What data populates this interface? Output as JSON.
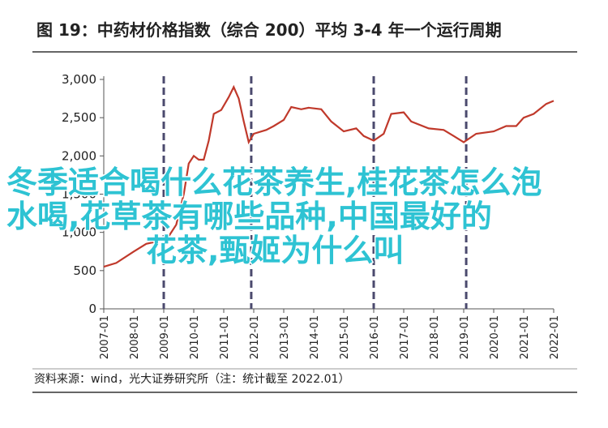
{
  "chart_data": {
    "type": "line",
    "title": "图 19：中药材价格指数（综合 200）平均 3-4 年一个运行周期",
    "source": "资料来源：wind，光大证券研究所（注：统计截至 2022.01）",
    "x": [
      "2007-01",
      "2007-06",
      "2008-01",
      "2008-06",
      "2009-01",
      "2009-03",
      "2009-06",
      "2009-09",
      "2009-11",
      "2010-01",
      "2010-03",
      "2010-05",
      "2010-07",
      "2010-09",
      "2010-12",
      "2011-03",
      "2011-05",
      "2011-07",
      "2011-09",
      "2011-11",
      "2012-01",
      "2012-06",
      "2012-09",
      "2013-01",
      "2013-04",
      "2013-08",
      "2013-11",
      "2014-04",
      "2014-08",
      "2015-01",
      "2015-06",
      "2015-09",
      "2016-01",
      "2016-05",
      "2016-08",
      "2017-01",
      "2017-04",
      "2017-11",
      "2018-05",
      "2018-09",
      "2019-01",
      "2019-06",
      "2020-01",
      "2020-06",
      "2020-10",
      "2021-01",
      "2021-05",
      "2021-10",
      "2022-01"
    ],
    "values": [
      550,
      600,
      750,
      850,
      900,
      950,
      1100,
      1500,
      1900,
      2000,
      1950,
      1950,
      2200,
      2550,
      2600,
      2770,
      2900,
      2750,
      2450,
      2180,
      2290,
      2340,
      2390,
      2470,
      2640,
      2610,
      2630,
      2610,
      2450,
      2320,
      2360,
      2260,
      2200,
      2290,
      2550,
      2570,
      2450,
      2360,
      2340,
      2260,
      2180,
      2290,
      2320,
      2390,
      2390,
      2500,
      2550,
      2680,
      2720
    ],
    "color": "#c0392b",
    "xlim": [
      "2007-01",
      "2022-01"
    ],
    "xticks": [
      "2007-01",
      "2008-01",
      "2009-01",
      "2010-01",
      "2011-01",
      "2012-01",
      "2013-01",
      "2014-01",
      "2015-01",
      "2016-01",
      "2017-01",
      "2018-01",
      "2019-01",
      "2020-01",
      "2021-01",
      "2022-01"
    ],
    "ylim": [
      0,
      3000
    ],
    "yticks": [
      0,
      500,
      {
        "value": 1000,
        "label": "1,000"
      },
      {
        "value": 1500,
        "label": "1,500"
      },
      {
        "value": 2000,
        "label": "2,000"
      },
      {
        "value": 2500,
        "label": "2,500"
      },
      {
        "value": 3000,
        "label": "3,000"
      }
    ],
    "cycle_lines": [
      "2009-01",
      "2011-12",
      "2016-01",
      "2019-02"
    ],
    "annotation_lines": [
      "冬季适合喝什么花茶养生,桂花茶怎么泡",
      "水喝,花草茶有哪些品种,中国最好的",
      "花茶,甄姬为什么叫"
    ]
  }
}
